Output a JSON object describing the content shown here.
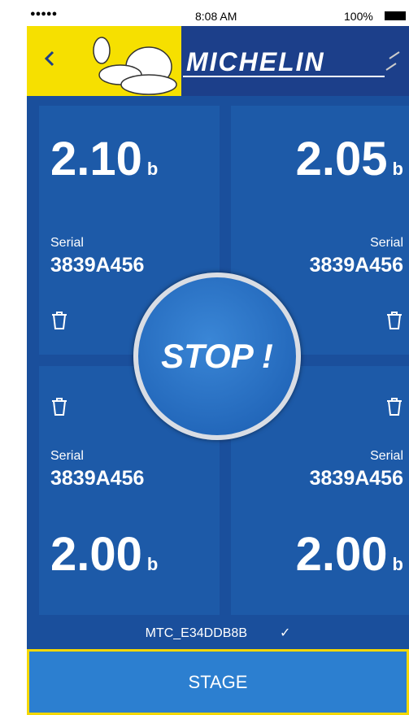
{
  "status_bar": {
    "time": "8:08 AM",
    "battery": "100%"
  },
  "header": {
    "brand": "MICHELIN"
  },
  "tiles": [
    {
      "pressure": "2.10",
      "unit": "b",
      "serial_label": "Serial",
      "serial": "3839A456"
    },
    {
      "pressure": "2.05",
      "unit": "b",
      "serial_label": "Serial",
      "serial": "3839A456"
    },
    {
      "pressure": "2.00",
      "unit": "b",
      "serial_label": "Serial",
      "serial": "3839A456"
    },
    {
      "pressure": "2.00",
      "unit": "b",
      "serial_label": "Serial",
      "serial": "3839A456"
    }
  ],
  "stop_button": "STOP !",
  "device": {
    "id": "MTC_E34DDB8B"
  },
  "action_button": "STAGE"
}
